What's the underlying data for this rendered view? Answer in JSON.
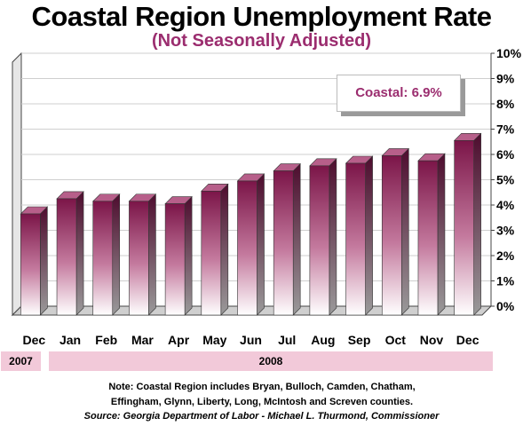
{
  "chart_data": {
    "type": "bar",
    "title": "Coastal Region Unemployment Rate",
    "subtitle": "(Not Seasonally Adjusted)",
    "categories": [
      "Dec",
      "Jan",
      "Feb",
      "Mar",
      "Apr",
      "May",
      "Jun",
      "Jul",
      "Aug",
      "Sep",
      "Oct",
      "Nov",
      "Dec"
    ],
    "values": [
      4.0,
      4.6,
      4.5,
      4.5,
      4.4,
      4.9,
      5.3,
      5.7,
      5.9,
      6.0,
      6.3,
      6.1,
      6.9
    ],
    "ylim": [
      0,
      10
    ],
    "yticks": [
      "0%",
      "1%",
      "2%",
      "3%",
      "4%",
      "5%",
      "6%",
      "7%",
      "8%",
      "9%",
      "10%"
    ],
    "grid": true,
    "annotation": "Coastal: 6.9%",
    "year_labels": [
      "2007",
      "2008"
    ],
    "bar_color_top": "#7b1548",
    "bar_color_bottom": "#ffffff"
  },
  "note": {
    "line1": "Note: Coastal Region includes Bryan, Bulloch, Camden, Chatham,",
    "line2": "Effingham, Glynn, Liberty, Long, McIntosh and Screven counties."
  },
  "source": "Source: Georgia Department of Labor - Michael L. Thurmond, Commissioner"
}
